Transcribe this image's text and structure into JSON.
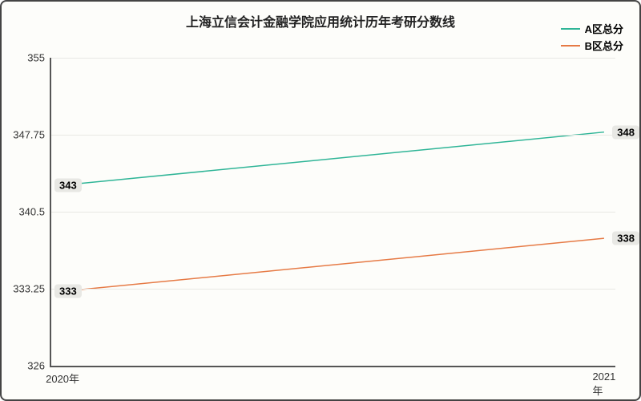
{
  "chart": {
    "type": "line",
    "title": "上海立信会计金融学院应用统计历年考研分数线",
    "title_fontsize": 16,
    "title_color": "#222222",
    "background_color": "#fdfdfa",
    "border_color": "#444444",
    "grid_color": "#e8e8e4",
    "ylim": [
      326,
      355
    ],
    "ytick_step": 7.25,
    "y_ticks": [
      "326",
      "333.25",
      "340.5",
      "347.75",
      "355"
    ],
    "x_categories": [
      "2020年",
      "2021年"
    ],
    "x_positions_pct": [
      2,
      98
    ],
    "label_fontsize": 13,
    "legend": {
      "position": "top-right",
      "fontsize": 13
    },
    "series": [
      {
        "name": "A区总分",
        "color": "#2fb597",
        "line_width": 1.5,
        "values": [
          343,
          348
        ],
        "label_sides": [
          "left",
          "right"
        ]
      },
      {
        "name": "B区总分",
        "color": "#e67a45",
        "line_width": 1.5,
        "values": [
          333,
          338
        ],
        "label_sides": [
          "left",
          "right"
        ]
      }
    ]
  }
}
